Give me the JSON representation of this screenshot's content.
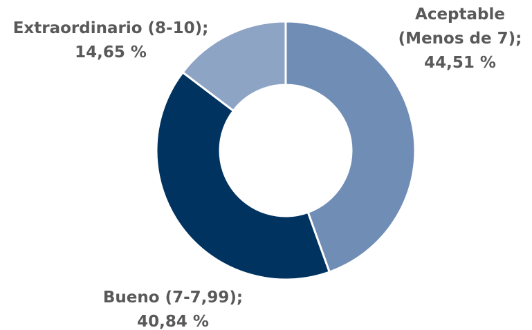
{
  "chart_data": {
    "type": "donut",
    "categories": [
      "Aceptable (Menos de 7);",
      "Bueno (7-7,99);",
      "Extraordinario (8-10);"
    ],
    "values": [
      44.51,
      40.84,
      14.65
    ],
    "value_labels": [
      "44,51 %",
      "40,84 %",
      "14,65 %"
    ],
    "colors": [
      "#6f8db5",
      "#003360",
      "#8ea4c4"
    ]
  }
}
